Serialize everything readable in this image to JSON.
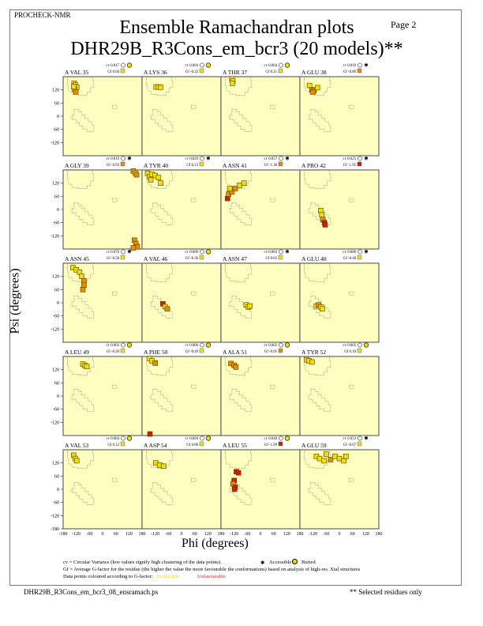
{
  "header": {
    "program": "PROCHECK-NMR",
    "page": "Page  2",
    "title": "Ensemble Ramachandran plots",
    "subtitle": "DHR29B_R3Cons_em_bcr3 (20 models)**"
  },
  "footer": {
    "filename": "DHR29B_R3Cons_em_bcr3_08_ensramach.ps",
    "note": "** Selected residues only"
  },
  "legend": {
    "cv_text": "cv = Circular Variance (low values signify high clustering of the data points).",
    "accessible": "Accessible",
    "buried": "Buried",
    "gf_text": "Gf = Average G-factor for the residue (the higher the value the more favourable the conformations) based on analysis of high-res. Xtal structures",
    "colour_text": "Data points coloured according to G-factor:",
    "favourable": "Favourable",
    "unfavourable": "Unfavourable"
  },
  "colors": {
    "background": "#ffffc0",
    "favourable": "#f0e000",
    "medium": "#e09000",
    "unfavourable": "#cc2200",
    "axis": "#666666"
  },
  "chart_data": {
    "type": "scatter",
    "xlabel": "Phi (degrees)",
    "ylabel": "Psi (degrees)",
    "xlim": [
      -180,
      180
    ],
    "ylim": [
      -180,
      180
    ],
    "xticks": [
      "-180",
      "-120",
      "-60",
      "0",
      "60",
      "120",
      "180"
    ],
    "yticks": [
      "120",
      "60",
      "0",
      "-60",
      "-120"
    ],
    "bottom_yticks": [
      "120",
      "60",
      "0",
      "-60",
      "-120",
      "-180"
    ],
    "panels": [
      {
        "residue": "A VAL 35",
        "cv": "cv 0.017",
        "gf": "Gf 0.04",
        "access": "buried",
        "gfcol": "fav",
        "points": [
          [
            -130,
            150,
            "fav"
          ],
          [
            -124,
            142,
            "fav"
          ],
          [
            -118,
            132,
            "fav"
          ],
          [
            -128,
            122,
            "fav"
          ],
          [
            -122,
            110,
            "med"
          ],
          [
            -132,
            135,
            "fav"
          ]
        ]
      },
      {
        "residue": "A LYS 36",
        "cv": "cv 0.004",
        "gf": "Gf -0.32",
        "access": "buried",
        "gfcol": "fav",
        "points": [
          [
            -116,
            133,
            "fav"
          ],
          [
            -106,
            133,
            "fav"
          ],
          [
            -96,
            132,
            "fav"
          ]
        ]
      },
      {
        "residue": "A THR 37",
        "cv": "cv 0.004",
        "gf": "Gf 0.21",
        "access": "buried",
        "gfcol": "fav",
        "points": [
          [
            -130,
            170,
            "fav"
          ],
          [
            -126,
            160,
            "fav"
          ],
          [
            -128,
            150,
            "fav"
          ]
        ]
      },
      {
        "residue": "A GLU 38",
        "cv": "cv 0.010",
        "gf": "Gf -0.86",
        "access": "accessible",
        "gfcol": "med",
        "points": [
          [
            -136,
            140,
            "fav"
          ],
          [
            -125,
            120,
            "med"
          ],
          [
            -115,
            118,
            "med"
          ],
          [
            -100,
            130,
            "fav"
          ],
          [
            -120,
            110,
            "med"
          ]
        ]
      },
      {
        "residue": "A GLY 39",
        "cv": "cv 0.019",
        "gf": "Gf -0.93",
        "access": "accessible",
        "gfcol": "med",
        "points": [
          [
            140,
            175,
            "med"
          ],
          [
            150,
            165,
            "fav"
          ],
          [
            155,
            158,
            "med"
          ],
          [
            145,
            -140,
            "med"
          ],
          [
            152,
            -155,
            "med"
          ],
          [
            158,
            -170,
            "med"
          ],
          [
            140,
            -175,
            "med"
          ]
        ]
      },
      {
        "residue": "A TYR 40",
        "cv": "cv 0.029",
        "gf": "Gf 0.13",
        "access": "accessible",
        "gfcol": "fav",
        "points": [
          [
            -155,
            165,
            "fav"
          ],
          [
            -145,
            150,
            "fav"
          ],
          [
            -135,
            160,
            "fav"
          ],
          [
            -120,
            155,
            "fav"
          ],
          [
            -105,
            145,
            "fav"
          ],
          [
            -95,
            120,
            "fav"
          ],
          [
            -140,
            135,
            "fav"
          ]
        ]
      },
      {
        "residue": "A ASN 41",
        "cv": "cv 0.057",
        "gf": "Gf -1.30",
        "access": "accessible",
        "gfcol": "med",
        "points": [
          [
            -150,
            50,
            "unf"
          ],
          [
            -145,
            70,
            "med"
          ],
          [
            -130,
            80,
            "med"
          ],
          [
            -115,
            95,
            "med"
          ],
          [
            -95,
            110,
            "fav"
          ],
          [
            -75,
            120,
            "fav"
          ],
          [
            -140,
            95,
            "fav"
          ]
        ]
      },
      {
        "residue": "A PRO 42",
        "cv": "cv 0.025",
        "gf": "Gf -1.95",
        "access": "accessible",
        "gfcol": "unf",
        "points": [
          [
            -85,
            -5,
            "fav"
          ],
          [
            -80,
            -25,
            "fav"
          ],
          [
            -75,
            -45,
            "med"
          ],
          [
            -68,
            -60,
            "unf"
          ],
          [
            -65,
            -70,
            "unf"
          ]
        ]
      },
      {
        "residue": "A ASN 45",
        "cv": "cv 0.076",
        "gf": "Gf -0.58",
        "access": "accessible",
        "gfcol": "fav",
        "points": [
          [
            -135,
            160,
            "fav"
          ],
          [
            -120,
            150,
            "fav"
          ],
          [
            -105,
            140,
            "fav"
          ],
          [
            -95,
            120,
            "fav"
          ],
          [
            -85,
            100,
            "med"
          ],
          [
            -85,
            80,
            "med"
          ],
          [
            -90,
            60,
            "med"
          ]
        ]
      },
      {
        "residue": "A VAL 46",
        "cv": "cv 0.009",
        "gf": "Gf -0.36",
        "access": "buried",
        "gfcol": "fav",
        "points": [
          [
            -85,
            -5,
            "unf"
          ],
          [
            -75,
            -18,
            "fav"
          ],
          [
            -65,
            -28,
            "med"
          ]
        ]
      },
      {
        "residue": "A ASN 47",
        "cv": "cv 0.003",
        "gf": "Gf 0.62",
        "access": "accessible",
        "gfcol": "fav",
        "points": [
          [
            -65,
            -10,
            "fav"
          ],
          [
            -55,
            -20,
            "fav"
          ],
          [
            -48,
            -15,
            "fav"
          ]
        ]
      },
      {
        "residue": "A GLU 48",
        "cv": "cv 0.008",
        "gf": "Gf -0.48",
        "access": "accessible",
        "gfcol": "fav",
        "points": [
          [
            -105,
            -15,
            "fav"
          ],
          [
            -95,
            -10,
            "med"
          ],
          [
            -85,
            -20,
            "fav"
          ],
          [
            -78,
            -28,
            "fav"
          ]
        ]
      },
      {
        "residue": "A LEU 49",
        "cv": "cv 0.003",
        "gf": "Gf -0.20",
        "access": "buried",
        "gfcol": "fav",
        "points": [
          [
            -90,
            145,
            "fav"
          ],
          [
            -80,
            138,
            "fav"
          ],
          [
            -72,
            134,
            "fav"
          ]
        ]
      },
      {
        "residue": "A PHE 50",
        "cv": "cv 0.006",
        "gf": "Gf -0.49",
        "access": "buried",
        "gfcol": "fav",
        "points": [
          [
            -145,
            170,
            "fav"
          ],
          [
            -135,
            160,
            "fav"
          ],
          [
            -120,
            150,
            "med"
          ],
          [
            -144,
            -173,
            "unf"
          ]
        ]
      },
      {
        "residue": "A ALA 51",
        "cv": "cv 0.002",
        "gf": "Gf -0.95",
        "access": "buried",
        "gfcol": "med",
        "points": [
          [
            -135,
            148,
            "med"
          ],
          [
            -120,
            140,
            "med"
          ],
          [
            -112,
            132,
            "med"
          ]
        ]
      },
      {
        "residue": "A TYR 52",
        "cv": "cv 0.005",
        "gf": "Gf 0.18",
        "access": "buried",
        "gfcol": "fav",
        "points": [
          [
            -150,
            165,
            "fav"
          ],
          [
            -138,
            160,
            "fav"
          ],
          [
            -125,
            155,
            "fav"
          ]
        ]
      },
      {
        "residue": "A VAL 53",
        "cv": "cv 0.004",
        "gf": "Gf 0.12",
        "access": "buried",
        "gfcol": "fav",
        "points": [
          [
            -132,
            155,
            "fav"
          ],
          [
            -125,
            140,
            "fav"
          ],
          [
            -118,
            130,
            "fav"
          ]
        ]
      },
      {
        "residue": "A ASP 54",
        "cv": "cv 0.004",
        "gf": "Gf 0.00",
        "access": "buried",
        "gfcol": "fav",
        "points": [
          [
            -118,
            120,
            "fav"
          ],
          [
            -100,
            110,
            "fav"
          ],
          [
            -82,
            105,
            "fav"
          ]
        ]
      },
      {
        "residue": "A LEU 55",
        "cv": "cv 0.040",
        "gf": "Gf -1.99",
        "access": "buried",
        "gfcol": "unf",
        "points": [
          [
            -110,
            80,
            "unf"
          ],
          [
            -100,
            75,
            "unf"
          ],
          [
            -120,
            40,
            "unf"
          ],
          [
            -125,
            25,
            "med"
          ],
          [
            -115,
            10,
            "unf"
          ],
          [
            -118,
            0,
            "unf"
          ]
        ]
      },
      {
        "residue": "A GLU 59",
        "cv": "cv 0.053",
        "gf": "Gf -0.67",
        "access": "accessible",
        "gfcol": "fav",
        "points": [
          [
            -105,
            150,
            "fav"
          ],
          [
            -90,
            140,
            "fav"
          ],
          [
            -70,
            130,
            "fav"
          ],
          [
            -40,
            135,
            "med"
          ],
          [
            -20,
            150,
            "fav"
          ],
          [
            0,
            140,
            "fav"
          ],
          [
            20,
            130,
            "fav"
          ],
          [
            30,
            150,
            "fav"
          ],
          [
            -60,
            160,
            "fav"
          ]
        ]
      }
    ]
  }
}
